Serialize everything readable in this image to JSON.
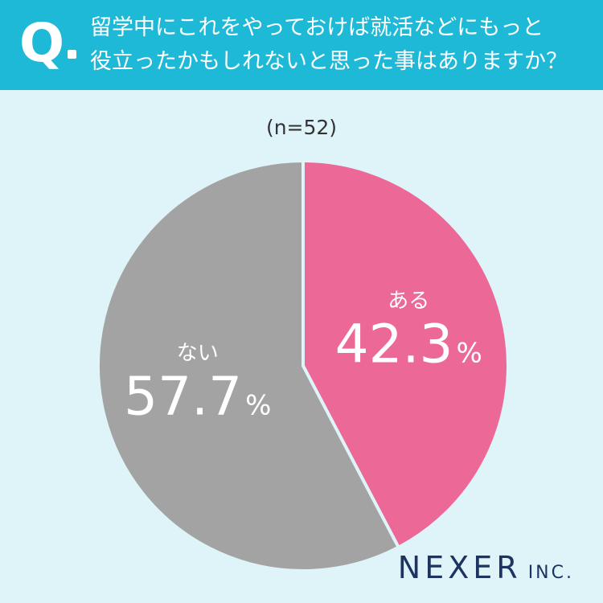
{
  "question": {
    "mark": "Q",
    "line1": "留学中にこれをやっておけば就活などにもっと",
    "line2": "役立ったかもしれないと思った事はありますか？"
  },
  "sample_size": "(n=52)",
  "logo": {
    "main": "NEXER",
    "sub": "INC."
  },
  "colors": {
    "header": "#1fb9d8",
    "background": "#dff4f9",
    "aru": "#ec6997",
    "nai": "#a3a3a3"
  },
  "chart_data": {
    "type": "pie",
    "labels": [
      "ある",
      "ない"
    ],
    "values": [
      42.3,
      57.7
    ],
    "unit": "%",
    "start": "top",
    "direction": "clockwise"
  }
}
